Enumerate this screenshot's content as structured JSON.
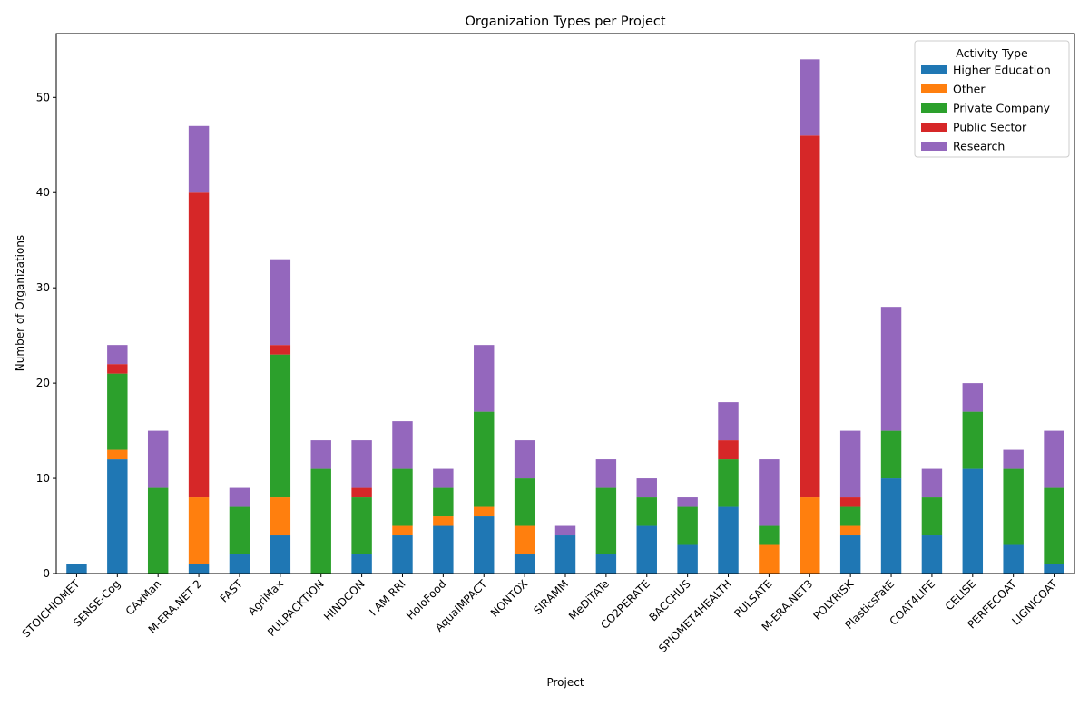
{
  "chart_data": {
    "type": "bar",
    "stacked": true,
    "title": "Organization Types per Project",
    "xlabel": "Project",
    "ylabel": "Number of Organizations",
    "ylim": [
      0,
      56.7
    ],
    "yticks": [
      0,
      10,
      20,
      30,
      40,
      50
    ],
    "grid": false,
    "legend": {
      "title": "Activity Type",
      "position": "top-right"
    },
    "categories": [
      "STOICHIOMET",
      "SENSE-Cog",
      "CAxMan",
      "M-ERA.NET 2",
      "FAST",
      "AgriMax",
      "PULPACKTION",
      "HINDCON",
      "I AM RRI",
      "HoloFood",
      "AquaIMPACT",
      "NONTOX",
      "SIRAMM",
      "MeDiTATe",
      "CO2PERATE",
      "BACCHUS",
      "SPIOMET4HEALTH",
      "PULSATE",
      "M-ERA.NET3",
      "POLYRISK",
      "PlasticsFatE",
      "COAT4LIFE",
      "CELISE",
      "PERFECOAT",
      "LIGNICOAT"
    ],
    "series": [
      {
        "name": "Higher Education",
        "color": "#1f77b4",
        "values": [
          1,
          12,
          0,
          1,
          2,
          4,
          0,
          2,
          4,
          5,
          6,
          2,
          4,
          2,
          5,
          3,
          7,
          0,
          0,
          4,
          10,
          4,
          11,
          3,
          1
        ]
      },
      {
        "name": "Other",
        "color": "#ff7f0e",
        "values": [
          0,
          1,
          0,
          7,
          0,
          4,
          0,
          0,
          1,
          1,
          1,
          3,
          0,
          0,
          0,
          0,
          0,
          3,
          8,
          1,
          0,
          0,
          0,
          0,
          0
        ]
      },
      {
        "name": "Private Company",
        "color": "#2ca02c",
        "values": [
          0,
          8,
          9,
          0,
          5,
          15,
          11,
          6,
          6,
          3,
          10,
          5,
          0,
          7,
          3,
          4,
          5,
          2,
          0,
          2,
          5,
          4,
          6,
          8,
          8
        ]
      },
      {
        "name": "Public Sector",
        "color": "#d62728",
        "values": [
          0,
          1,
          0,
          32,
          0,
          1,
          0,
          1,
          0,
          0,
          0,
          0,
          0,
          0,
          0,
          0,
          2,
          0,
          38,
          1,
          0,
          0,
          0,
          0,
          0
        ]
      },
      {
        "name": "Research",
        "color": "#9467bd",
        "values": [
          0,
          2,
          6,
          7,
          2,
          9,
          3,
          5,
          5,
          2,
          7,
          4,
          1,
          3,
          2,
          1,
          4,
          7,
          8,
          7,
          13,
          3,
          3,
          2,
          6
        ]
      }
    ]
  }
}
